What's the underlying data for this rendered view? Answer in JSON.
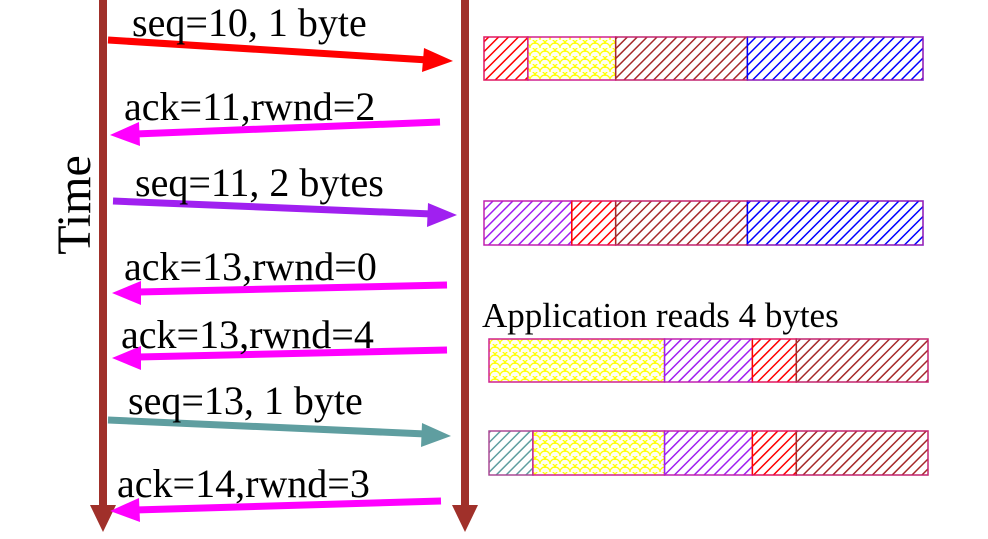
{
  "time_label": "Time",
  "messages": [
    {
      "text": "seq=10, 1 byte",
      "color": "#ff0000",
      "direction": "to-receiver"
    },
    {
      "text": "ack=11,rwnd=2",
      "color": "#ff00ff",
      "direction": "to-sender"
    },
    {
      "text": "seq=11, 2 bytes",
      "color": "#a020f0",
      "direction": "to-sender-receiver"
    },
    {
      "text": "ack=13,rwnd=0",
      "color": "#ff00ff",
      "direction": "to-sender"
    },
    {
      "text": "ack=13,rwnd=4",
      "color": "#ff00ff",
      "direction": "to-sender"
    },
    {
      "text": "seq=13, 1 byte",
      "color": "#5f9ea0",
      "direction": "to-receiver"
    },
    {
      "text": "ack=14,rwnd=3",
      "color": "#ff00ff",
      "direction": "to-sender"
    }
  ],
  "event_label": "Application reads 4 bytes",
  "buffers": [
    {
      "segments": [
        {
          "pattern": "hatch",
          "color": "#ff0000",
          "units": 1
        },
        {
          "pattern": "scales",
          "color": "#ffff00",
          "units": 2
        },
        {
          "pattern": "hatch",
          "color": "#a52a2a",
          "units": 3
        },
        {
          "pattern": "hatch",
          "color": "#0000ff",
          "units": 4
        }
      ]
    },
    {
      "segments": [
        {
          "pattern": "hatch",
          "color": "#a020f0",
          "units": 2
        },
        {
          "pattern": "hatch",
          "color": "#ff0000",
          "units": 1
        },
        {
          "pattern": "hatch",
          "color": "#a52a2a",
          "units": 3
        },
        {
          "pattern": "hatch",
          "color": "#0000ff",
          "units": 4
        }
      ]
    },
    {
      "segments": [
        {
          "pattern": "scales",
          "color": "#ffff00",
          "units": 4
        },
        {
          "pattern": "hatch",
          "color": "#a020f0",
          "units": 2
        },
        {
          "pattern": "hatch",
          "color": "#ff0000",
          "units": 1
        },
        {
          "pattern": "hatch",
          "color": "#a52a2a",
          "units": 3
        }
      ]
    },
    {
      "segments": [
        {
          "pattern": "hatch",
          "color": "#5f9ea0",
          "units": 1
        },
        {
          "pattern": "scales",
          "color": "#ffff00",
          "units": 3
        },
        {
          "pattern": "hatch",
          "color": "#a020f0",
          "units": 2
        },
        {
          "pattern": "hatch",
          "color": "#ff0000",
          "units": 1
        },
        {
          "pattern": "hatch",
          "color": "#a52a2a",
          "units": 3
        }
      ]
    }
  ],
  "colors": {
    "timeline": "#a0302a",
    "border_pink": "#d02090"
  }
}
